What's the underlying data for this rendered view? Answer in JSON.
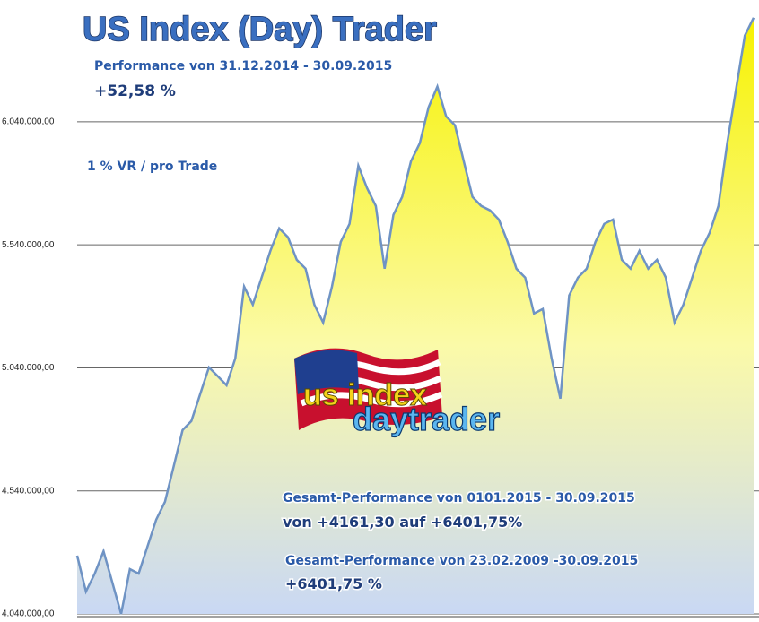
{
  "chart_data": {
    "type": "area",
    "title": "US Index (Day) Trader",
    "annotations": [
      "Performance  von  31.12.2014 - 30.09.2015",
      "+52,58  %",
      "1 % VR / pro Trade",
      "Gesamt-Performance  von  0101.2015 - 30.09.2015",
      "von +4161,30 auf  +6401,75%",
      "Gesamt-Performance  von  23.02.2009 -30.09.2015",
      "+6401,75 %"
    ],
    "logo": [
      "us index",
      "daytrader"
    ],
    "values": [
      4277000,
      4131000,
      4204000,
      4295000,
      4168000,
      4040000,
      4222000,
      4204000,
      4313000,
      4423000,
      4496000,
      4641000,
      4787000,
      4824000,
      4933000,
      5042000,
      5006000,
      4969000,
      5079000,
      5370000,
      5297000,
      5407000,
      5516000,
      5607000,
      5571000,
      5479000,
      5443000,
      5297000,
      5224000,
      5370000,
      5552000,
      5625000,
      5862000,
      5771000,
      5698000,
      5443000,
      5662000,
      5735000,
      5880000,
      5953000,
      6099000,
      6183000,
      6062000,
      6026000,
      5880000,
      5735000,
      5698000,
      5680000,
      5643000,
      5552000,
      5443000,
      5407000,
      5261000,
      5279000,
      5079000,
      4915000,
      5334000,
      5407000,
      5443000,
      5552000,
      5625000,
      5643000,
      5479000,
      5443000,
      5516000,
      5443000,
      5479000,
      5407000,
      5224000,
      5297000,
      5407000,
      5516000,
      5589000,
      5698000,
      5953000,
      6172000,
      6390000,
      6463000
    ],
    "color": "#6f93c4",
    "ylim": [
      4040000,
      6535000
    ],
    "yticks": [
      {
        "value": 4040000,
        "label": "4.040.000,00"
      },
      {
        "value": 4540000,
        "label": "4.540.000,00"
      },
      {
        "value": 5040000,
        "label": "5.040.000,00"
      },
      {
        "value": 5540000,
        "label": "5.540.000,00"
      },
      {
        "value": 6040000,
        "label": "6.040.000,00"
      }
    ],
    "grid": true
  }
}
